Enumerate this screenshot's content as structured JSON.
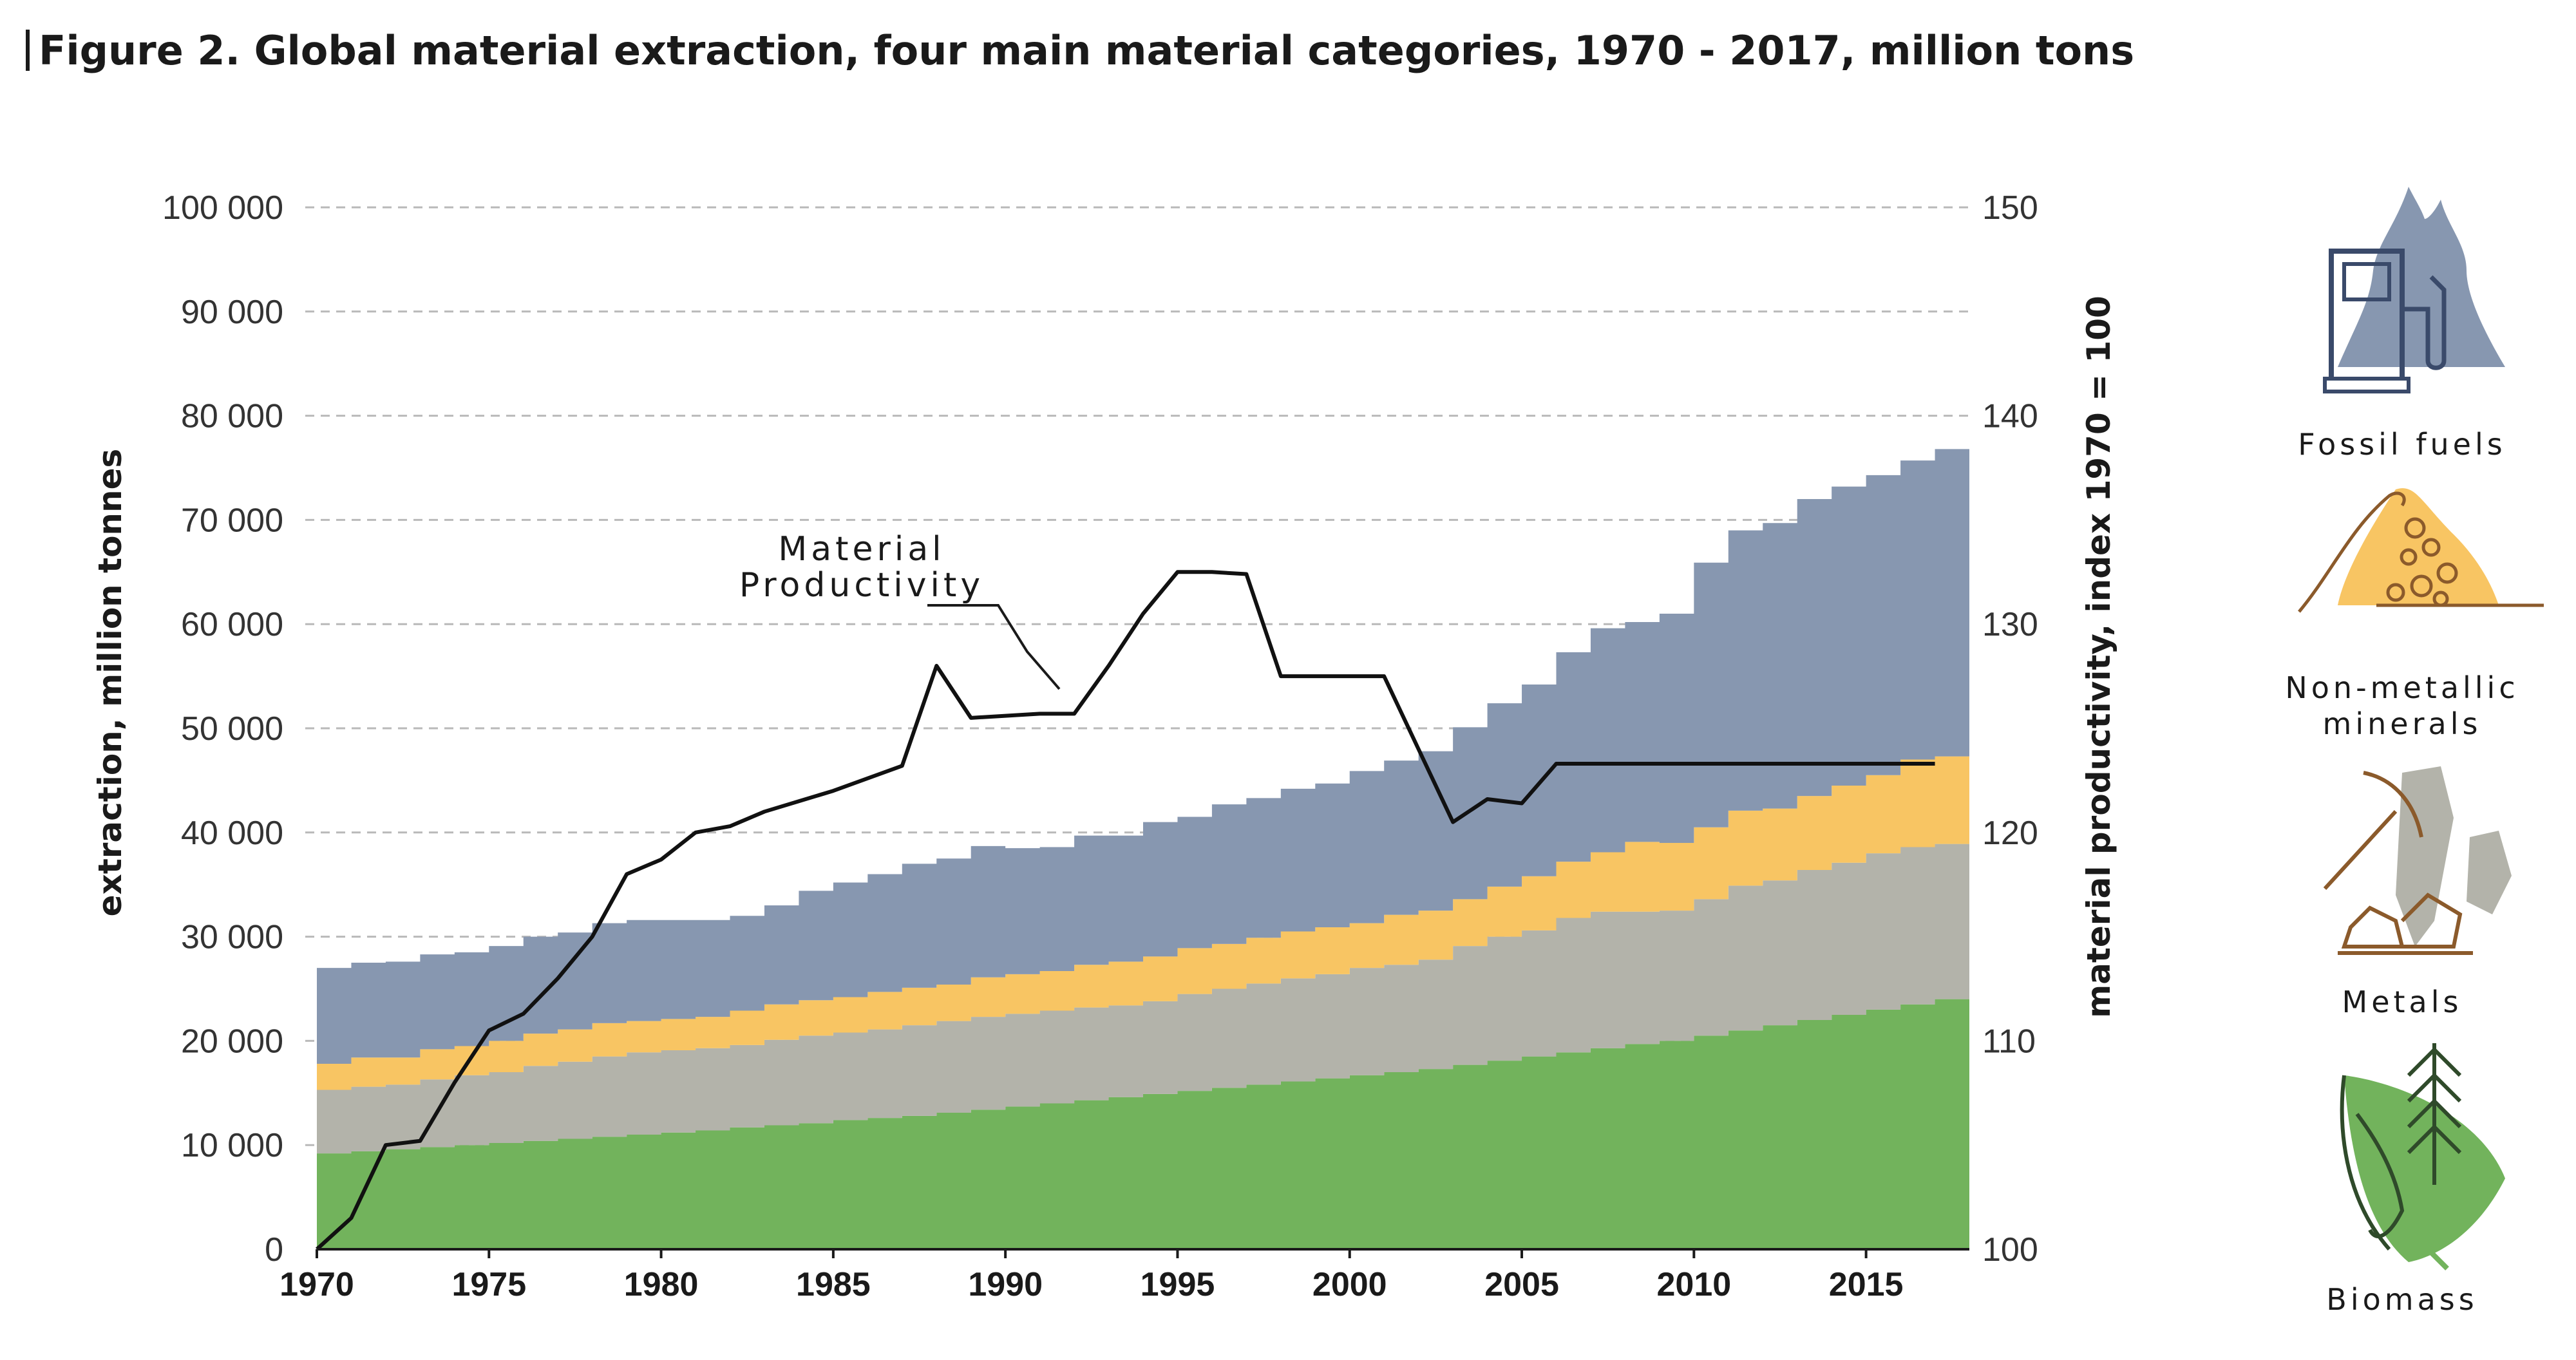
{
  "title": {
    "bar_symbol": "|",
    "text": "Figure 2.  Global material extraction, four main material categories, 1970 - 2017, million tons"
  },
  "colors": {
    "biomass": "#72b35c",
    "metals": "#b3b3aa",
    "non_metallic_minerals": "#f8c563",
    "fossil_fuels": "#8797b0",
    "productivity_line": "#111111",
    "gridline": "#b9b9b9"
  },
  "chart_data": {
    "type": "area",
    "stacked": true,
    "step": true,
    "x": [
      1970,
      1971,
      1972,
      1973,
      1974,
      1975,
      1976,
      1977,
      1978,
      1979,
      1980,
      1981,
      1982,
      1983,
      1984,
      1985,
      1986,
      1987,
      1988,
      1989,
      1990,
      1991,
      1992,
      1993,
      1994,
      1995,
      1996,
      1997,
      1998,
      1999,
      2000,
      2001,
      2002,
      2003,
      2004,
      2005,
      2006,
      2007,
      2008,
      2009,
      2010,
      2011,
      2012,
      2013,
      2014,
      2015,
      2016,
      2017
    ],
    "series": [
      {
        "name": "Biomass",
        "values": [
          9200,
          9400,
          9600,
          9800,
          10000,
          10200,
          10400,
          10600,
          10800,
          11000,
          11200,
          11400,
          11700,
          11900,
          12100,
          12400,
          12600,
          12800,
          13100,
          13400,
          13700,
          14000,
          14300,
          14600,
          14900,
          15200,
          15500,
          15800,
          16100,
          16400,
          16700,
          17000,
          17300,
          17700,
          18100,
          18500,
          18900,
          19300,
          19700,
          20000,
          20500,
          21000,
          21500,
          22000,
          22500,
          23000,
          23500,
          24000
        ]
      },
      {
        "name": "Metals",
        "values": [
          6100,
          6200,
          6200,
          6500,
          6700,
          6800,
          7200,
          7400,
          7700,
          7900,
          7900,
          7900,
          7900,
          8200,
          8400,
          8400,
          8500,
          8700,
          8800,
          8900,
          8900,
          8900,
          8900,
          8800,
          8900,
          9300,
          9500,
          9700,
          9900,
          10000,
          10300,
          10300,
          10500,
          11400,
          11900,
          12100,
          12900,
          13100,
          12700,
          12500,
          13100,
          13900,
          13900,
          14400,
          14600,
          15000,
          15100,
          14900
        ]
      },
      {
        "name": "Non-metallic minerals",
        "values": [
          2500,
          2800,
          2600,
          2900,
          2800,
          3000,
          3100,
          3100,
          3200,
          3000,
          3000,
          3000,
          3300,
          3400,
          3400,
          3400,
          3600,
          3600,
          3500,
          3800,
          3800,
          3800,
          4100,
          4200,
          4300,
          4400,
          4300,
          4400,
          4500,
          4500,
          4300,
          4800,
          4700,
          4500,
          4800,
          5200,
          5400,
          5700,
          6700,
          6500,
          6900,
          7200,
          6900,
          7100,
          7400,
          7500,
          8400,
          8400
        ]
      },
      {
        "name": "Fossil fuels",
        "values": [
          9200,
          9100,
          9200,
          9100,
          9000,
          9100,
          9300,
          9300,
          9600,
          9700,
          9500,
          9300,
          9100,
          9500,
          10500,
          11000,
          11300,
          11900,
          12100,
          12600,
          12100,
          11900,
          12400,
          12100,
          12900,
          12600,
          13400,
          13400,
          13700,
          13800,
          14600,
          14800,
          15300,
          16500,
          17600,
          18400,
          20100,
          21500,
          21100,
          22000,
          25400,
          26900,
          27400,
          28500,
          28700,
          28800,
          28700,
          29500
        ]
      },
      {
        "name": "Material Productivity",
        "axis": "right",
        "x": [
          1970,
          1971,
          1972,
          1973,
          1974,
          1975,
          1976,
          1977,
          1978,
          1979,
          1980,
          1981,
          1982,
          1983,
          1984,
          1985,
          1986,
          1987,
          1988,
          1989,
          1990,
          1991,
          1992,
          1993,
          1994,
          1995,
          1996,
          1997,
          1998,
          1999,
          2000,
          2001,
          2002,
          2003,
          2004,
          2005,
          2006,
          2007,
          2008,
          2009,
          2010,
          2011,
          2012,
          2013,
          2014,
          2015,
          2016,
          2017
        ],
        "values": [
          100,
          101.5,
          105,
          105.2,
          108,
          110.5,
          111.3,
          113,
          115,
          118,
          118.7,
          120,
          120.3,
          121,
          121.5,
          122,
          122.6,
          123.2,
          128,
          125.5,
          125.6,
          125.7,
          125.7,
          128,
          130.5,
          132.5,
          132.5,
          132.4,
          127.5,
          127.5,
          127.5,
          127.5,
          124,
          120.5,
          121.6,
          121.4,
          123.3,
          123.3,
          123.3,
          123.3,
          123.3,
          123.3,
          123.3,
          123.3,
          123.3,
          123.3,
          123.3,
          123.3
        ]
      }
    ],
    "ylim": [
      0,
      100000
    ],
    "yticks": [
      "0",
      "10 000",
      "20 000",
      "30 000",
      "40 000",
      "50 000",
      "60 000",
      "70 000",
      "80 000",
      "90 000",
      "100 000"
    ],
    "ylabel": "extraction, million tonnes",
    "y2lim": [
      100,
      150
    ],
    "y2ticks": [
      "100",
      "110",
      "120",
      "130",
      "140",
      "150"
    ],
    "y2label": "material productivity, index 1970 = 100",
    "xticks": [
      "1970",
      "1975",
      "1980",
      "1985",
      "1990",
      "1995",
      "2000",
      "2005",
      "2010",
      "2015"
    ],
    "grid": "horizontal dashed",
    "annotation": [
      "Material",
      "Productivity"
    ],
    "legend_position": "right"
  },
  "legend": [
    {
      "label": "Fossil fuels",
      "icon": "fossil-fuels-icon"
    },
    {
      "label": [
        "Non-metallic",
        "minerals"
      ],
      "icon": "non-metallic-minerals-icon"
    },
    {
      "label": "Metals",
      "icon": "metals-icon"
    },
    {
      "label": "Biomass",
      "icon": "biomass-icon"
    }
  ]
}
